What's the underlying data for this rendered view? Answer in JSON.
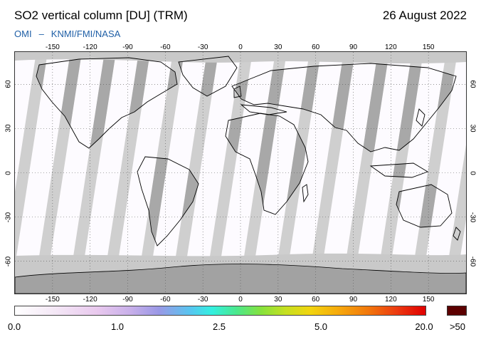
{
  "header": {
    "title": "SO2 vertical column [DU] (TRM)",
    "date": "26 August 2022",
    "credit_left": "OMI",
    "credit_sep": "–",
    "credit_right": "KNMI/FMI/NASA"
  },
  "axes": {
    "lon_ticks": [
      "-150",
      "-120",
      "-90",
      "-60",
      "-30",
      "0",
      "30",
      "60",
      "90",
      "120",
      "150"
    ],
    "lat_ticks": [
      "60",
      "30",
      "0",
      "-30",
      "-60"
    ]
  },
  "colorbar": {
    "labels": [
      "0.0",
      "1.0",
      "2.5",
      "5.0",
      "20.0",
      ">50"
    ],
    "colors": [
      "#ffffff",
      "#e9c9ee",
      "#9a98e6",
      "#33f0e0",
      "#86e23c",
      "#f2d40e",
      "#f2780c",
      "#e00000",
      "#5c0000"
    ]
  },
  "map_colors": {
    "background": "#fdfbff",
    "swath_gap": "#cfcfcf",
    "land_gap": "#a8a8a8",
    "polar": "#c9c9c9",
    "antarctica": "#a2a2a2",
    "coast": "#000000",
    "grid": "#555555"
  }
}
